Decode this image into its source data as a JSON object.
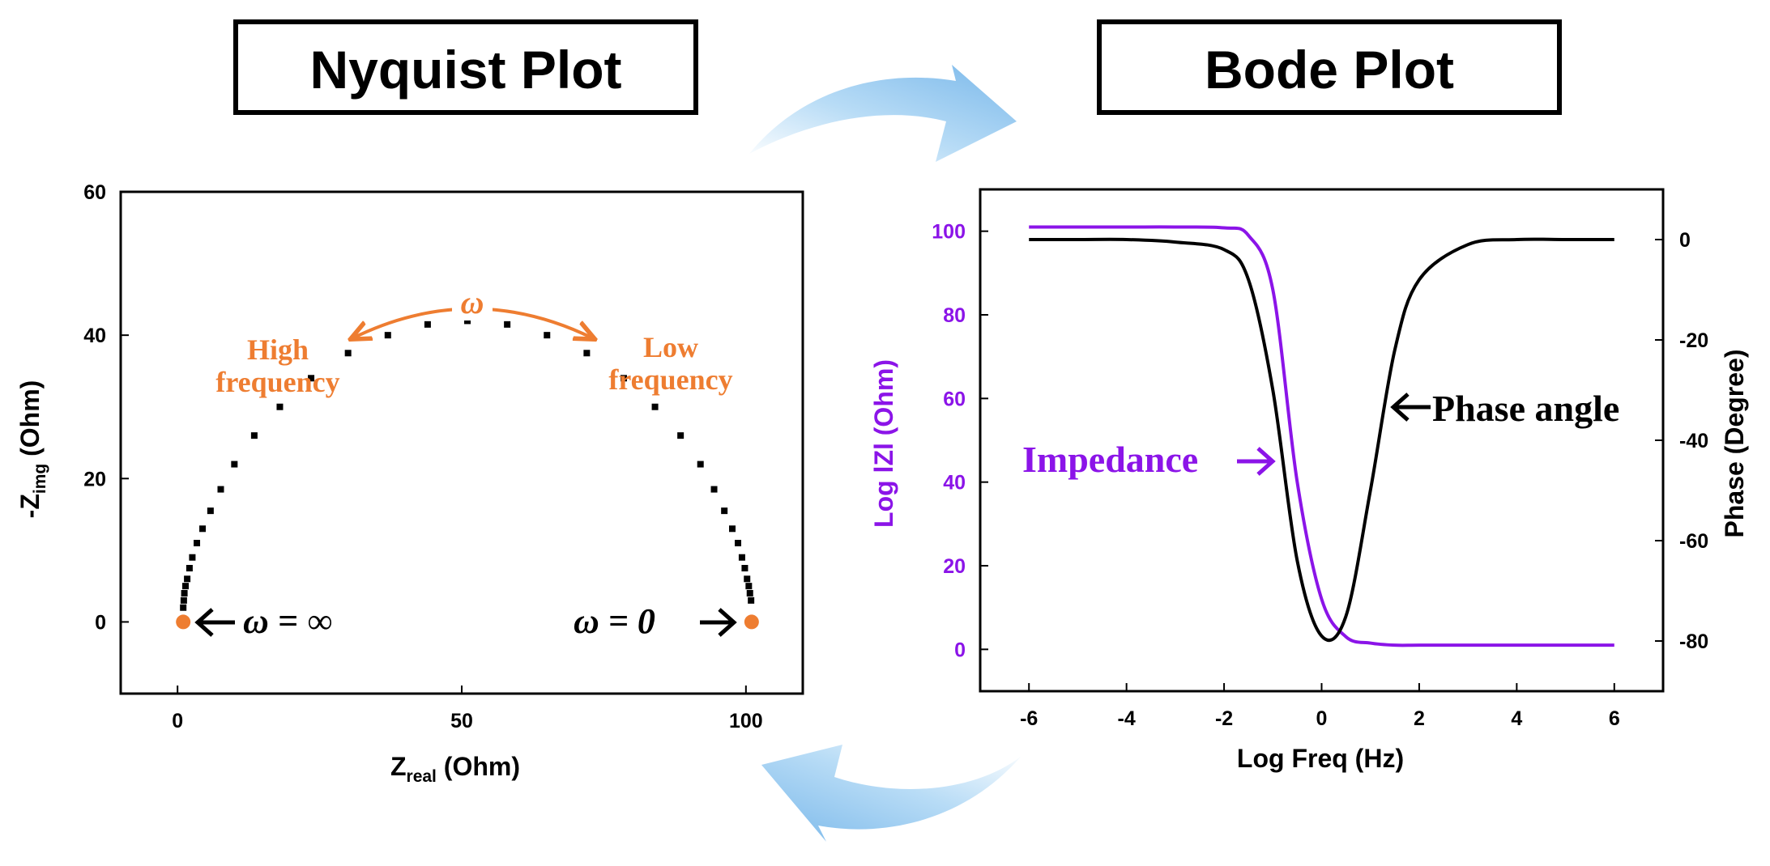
{
  "titles": {
    "nyquist": "Nyquist Plot",
    "bode": "Bode Plot"
  },
  "nyquist": {
    "ylabel_main": "-Z",
    "ylabel_sub": "img",
    "ylabel_unit": " (Ohm)",
    "xlabel_main": "Z",
    "xlabel_sub": "real",
    "xlabel_unit": " (Ohm)",
    "annotations": {
      "omega": "ω",
      "high_line1": "High",
      "high_line2": "frequency",
      "low_line1": "Low",
      "low_line2": "frequency",
      "omega_inf": "ω = ∞",
      "omega_zero": "ω = 0"
    }
  },
  "bode": {
    "ylabel_left": "Log lZl (Ohm)",
    "ylabel_right": "Phase (Degree)",
    "xlabel": "Log Freq (Hz)",
    "annotations": {
      "impedance": "Impedance",
      "phase_angle": "Phase angle"
    }
  },
  "colors": {
    "orange": "#EE7D31",
    "purple": "#8B14E8",
    "black": "#000000",
    "arrow_blue": "#8EC6EE"
  },
  "chart_data": [
    {
      "type": "scatter",
      "title": "Nyquist Plot",
      "xlabel": "Zreal (Ohm)",
      "ylabel": "-Zimg (Ohm)",
      "xlim": [
        -10,
        110
      ],
      "ylim": [
        -10,
        60
      ],
      "xticks": [
        0,
        50,
        100
      ],
      "yticks": [
        0,
        20,
        40,
        60
      ],
      "grid": false,
      "series": [
        {
          "marker": "square",
          "color": "#000000",
          "x": [
            1.0,
            1.1,
            1.2,
            1.4,
            1.7,
            2.1,
            2.6,
            3.4,
            4.4,
            5.8,
            7.6,
            10.0,
            13.5,
            18.0,
            23.5,
            30.0,
            37.0,
            44.0,
            51.0,
            58.0,
            65.0,
            72.0,
            78.5,
            84.0,
            88.5,
            92.0,
            94.4,
            96.2,
            97.6,
            98.6,
            99.3,
            99.8,
            100.2,
            100.5,
            100.7,
            100.9
          ],
          "y": [
            2.0,
            3.0,
            4.0,
            5.0,
            6.0,
            7.5,
            9.0,
            11.0,
            13.0,
            15.5,
            18.5,
            22.0,
            26.0,
            30.0,
            34.0,
            37.5,
            40.0,
            41.5,
            42.0,
            41.5,
            40.0,
            37.5,
            34.0,
            30.0,
            26.0,
            22.0,
            18.5,
            15.5,
            13.0,
            11.0,
            9.0,
            7.5,
            6.0,
            5.0,
            4.0,
            3.0
          ]
        },
        {
          "name": "",
          "marker": "circle",
          "color": "#EE7D31",
          "x": [
            1,
            101
          ],
          "y": [
            0,
            0
          ]
        }
      ]
    },
    {
      "type": "line",
      "title": "Bode Plot",
      "xlabel": "Log Freq (Hz)",
      "ylabel": "Log lZl (Ohm)",
      "ylabel_right": "Phase (Degree)",
      "xlim": [
        -7,
        7
      ],
      "ylim": [
        -10,
        110
      ],
      "ylim_right": [
        -90,
        10
      ],
      "xticks": [
        -6,
        -4,
        -2,
        0,
        2,
        4,
        6
      ],
      "yticks": [
        0,
        20,
        40,
        60,
        80,
        100
      ],
      "yticks_right": [
        0,
        -20,
        -40,
        -60,
        -80
      ],
      "grid": false,
      "x": [
        -6,
        -5,
        -4,
        -3,
        -2,
        -1.5,
        -1,
        -0.5,
        0,
        0.5,
        1,
        1.5,
        2,
        3,
        4,
        5,
        6
      ],
      "series": [
        {
          "name": "Impedance",
          "axis": "left",
          "color": "#8B14E8",
          "values": [
            101,
            101,
            101,
            101,
            100.8,
            99,
            86,
            40,
            12,
            3,
            1.5,
            1,
            1,
            1,
            1,
            1,
            1
          ]
        },
        {
          "name": "Phase angle",
          "axis": "right",
          "color": "#000000",
          "values": [
            0,
            0,
            0,
            -0.5,
            -2,
            -8,
            -30,
            -64,
            -79,
            -75,
            -50,
            -22,
            -8,
            -1,
            0,
            0,
            0
          ]
        }
      ]
    }
  ]
}
